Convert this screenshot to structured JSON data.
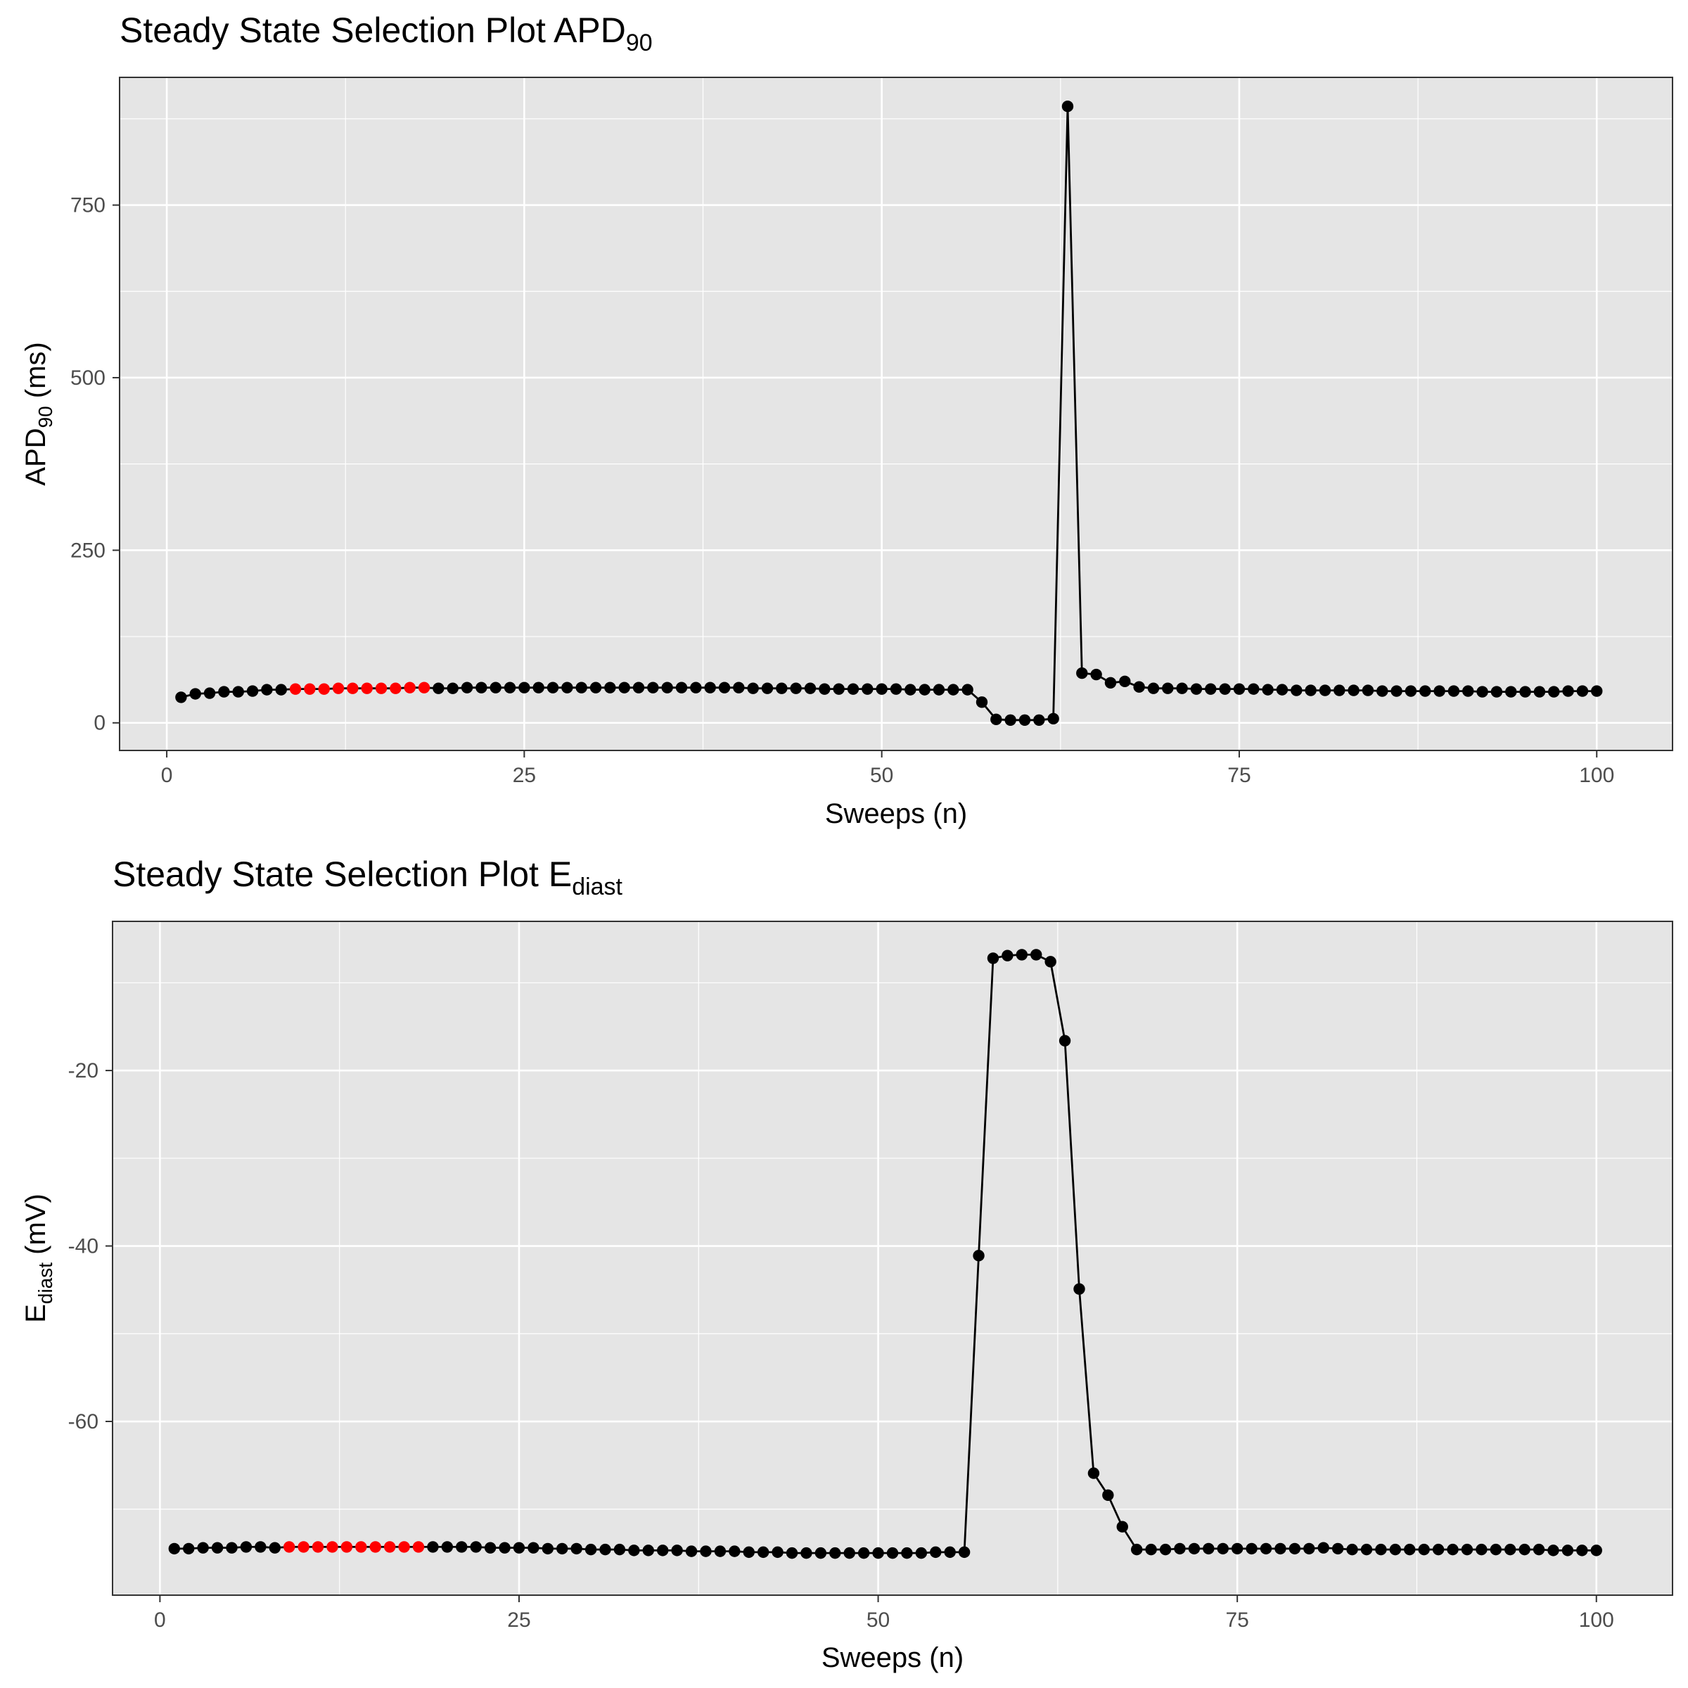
{
  "chart_data": [
    {
      "type": "line",
      "title": "Steady State Selection Plot APD",
      "title_sub": "90",
      "xlabel": "Sweeps (n)",
      "ylabel": "APD",
      "ylabel_sub": "90",
      "ylabel_unit": " (ms)",
      "xlim": [
        -3.3,
        105.3
      ],
      "ylim": [
        -40,
        935
      ],
      "xticks": [
        0,
        25,
        50,
        75,
        100
      ],
      "yticks": [
        0,
        250,
        500,
        750
      ],
      "grid": true,
      "legend": "none",
      "colors": {
        "panel_bg": "#e5e5e5",
        "grid": "#ffffff",
        "line": "#000000",
        "point": "#000000",
        "highlight": "#ff0000"
      },
      "highlight_range": [
        9,
        18
      ],
      "x": [
        1,
        2,
        3,
        4,
        5,
        6,
        7,
        8,
        9,
        10,
        11,
        12,
        13,
        14,
        15,
        16,
        17,
        18,
        19,
        20,
        21,
        22,
        23,
        24,
        25,
        26,
        27,
        28,
        29,
        30,
        31,
        32,
        33,
        34,
        35,
        36,
        37,
        38,
        39,
        40,
        41,
        42,
        43,
        44,
        45,
        46,
        47,
        48,
        49,
        50,
        51,
        52,
        53,
        54,
        55,
        56,
        57,
        58,
        59,
        60,
        61,
        62,
        63,
        64,
        65,
        66,
        67,
        68,
        69,
        70,
        71,
        72,
        73,
        74,
        75,
        76,
        77,
        78,
        79,
        80,
        81,
        82,
        83,
        84,
        85,
        86,
        87,
        88,
        89,
        90,
        91,
        92,
        93,
        94,
        95,
        96,
        97,
        98,
        99,
        100
      ],
      "y": [
        37,
        42,
        43,
        45,
        45,
        46,
        48,
        48,
        49,
        49,
        49,
        50,
        50,
        50,
        50,
        50,
        51,
        51,
        50,
        50,
        51,
        51,
        51,
        51,
        51,
        51,
        51,
        51,
        51,
        51,
        51,
        51,
        51,
        51,
        51,
        51,
        51,
        51,
        51,
        51,
        50,
        50,
        50,
        50,
        50,
        49,
        49,
        49,
        49,
        49,
        49,
        48,
        48,
        48,
        48,
        48,
        30,
        5,
        4,
        4,
        4,
        6,
        893,
        72,
        70,
        58,
        60,
        52,
        50,
        50,
        50,
        49,
        49,
        49,
        49,
        49,
        48,
        48,
        47,
        47,
        47,
        47,
        47,
        47,
        46,
        46,
        46,
        46,
        46,
        46,
        46,
        45,
        45,
        45,
        45,
        45,
        45,
        46,
        46,
        46
      ]
    },
    {
      "type": "line",
      "title": "Steady State Selection Plot E",
      "title_sub": "diast",
      "xlabel": "Sweeps (n)",
      "ylabel": "E",
      "ylabel_sub": "diast",
      "ylabel_unit": " (mV)",
      "xlim": [
        -3.3,
        105.3
      ],
      "ylim": [
        -79.8,
        -3
      ],
      "xticks": [
        0,
        25,
        50,
        75,
        100
      ],
      "yticks": [
        -20,
        -40,
        -60
      ],
      "grid": true,
      "legend": "none",
      "colors": {
        "panel_bg": "#e5e5e5",
        "grid": "#ffffff",
        "line": "#000000",
        "point": "#000000",
        "highlight": "#ff0000"
      },
      "highlight_range": [
        9,
        18
      ],
      "x": [
        1,
        2,
        3,
        4,
        5,
        6,
        7,
        8,
        9,
        10,
        11,
        12,
        13,
        14,
        15,
        16,
        17,
        18,
        19,
        20,
        21,
        22,
        23,
        24,
        25,
        26,
        27,
        28,
        29,
        30,
        31,
        32,
        33,
        34,
        35,
        36,
        37,
        38,
        39,
        40,
        41,
        42,
        43,
        44,
        45,
        46,
        47,
        48,
        49,
        50,
        51,
        52,
        53,
        54,
        55,
        56,
        57,
        58,
        59,
        60,
        61,
        62,
        63,
        64,
        65,
        66,
        67,
        68,
        69,
        70,
        71,
        72,
        73,
        74,
        75,
        76,
        77,
        78,
        79,
        80,
        81,
        82,
        83,
        84,
        85,
        86,
        87,
        88,
        89,
        90,
        91,
        92,
        93,
        94,
        95,
        96,
        97,
        98,
        99,
        100
      ],
      "y": [
        -74.5,
        -74.5,
        -74.4,
        -74.4,
        -74.4,
        -74.3,
        -74.3,
        -74.4,
        -74.3,
        -74.3,
        -74.3,
        -74.3,
        -74.3,
        -74.3,
        -74.3,
        -74.3,
        -74.3,
        -74.3,
        -74.3,
        -74.3,
        -74.3,
        -74.3,
        -74.4,
        -74.4,
        -74.4,
        -74.4,
        -74.5,
        -74.5,
        -74.5,
        -74.6,
        -74.6,
        -74.6,
        -74.7,
        -74.7,
        -74.7,
        -74.7,
        -74.8,
        -74.8,
        -74.8,
        -74.8,
        -74.9,
        -74.9,
        -74.9,
        -75.0,
        -75.0,
        -75.0,
        -75.0,
        -75.0,
        -75.0,
        -75.0,
        -75.0,
        -75.0,
        -75.0,
        -74.9,
        -74.9,
        -74.9,
        -41.1,
        -7.2,
        -6.9,
        -6.8,
        -6.8,
        -7.6,
        -16.6,
        -44.9,
        -65.9,
        -68.4,
        -72.0,
        -74.6,
        -74.6,
        -74.6,
        -74.5,
        -74.5,
        -74.5,
        -74.5,
        -74.5,
        -74.5,
        -74.5,
        -74.5,
        -74.5,
        -74.5,
        -74.4,
        -74.5,
        -74.6,
        -74.6,
        -74.6,
        -74.6,
        -74.6,
        -74.6,
        -74.6,
        -74.6,
        -74.6,
        -74.6,
        -74.6,
        -74.6,
        -74.6,
        -74.6,
        -74.7,
        -74.7,
        -74.7,
        -74.7
      ]
    }
  ]
}
